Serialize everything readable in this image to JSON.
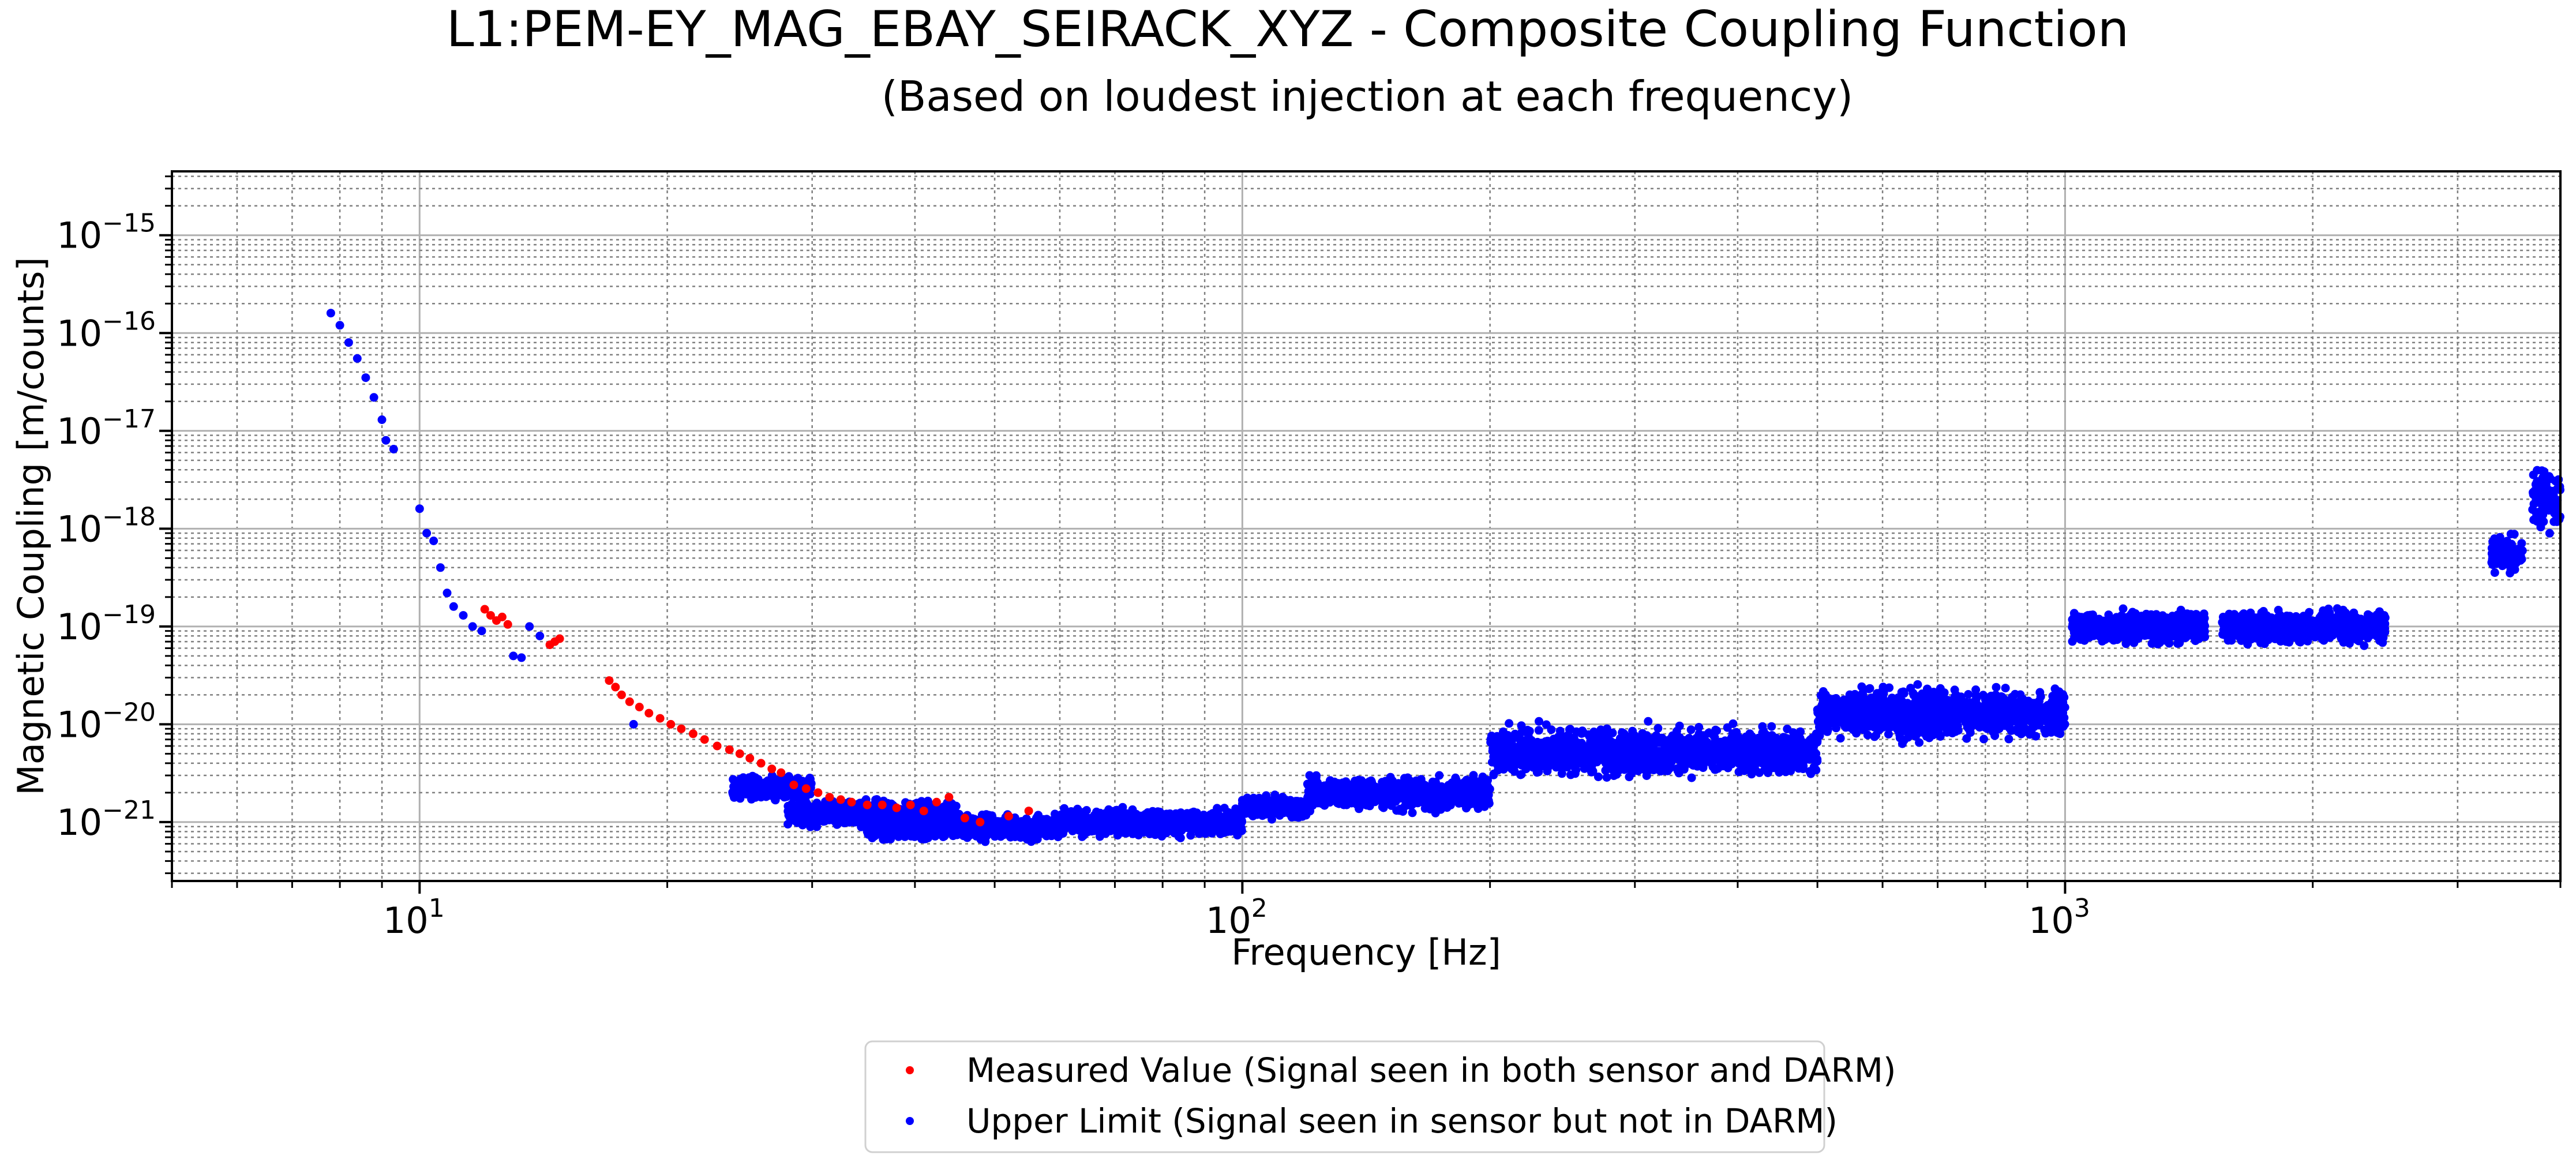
{
  "colors": {
    "measured": "#ff0000",
    "upper": "#0000ff",
    "grid_major": "#b0b0b0",
    "grid_minor": "#808080",
    "axis": "#000000"
  },
  "chart_data": {
    "type": "scatter",
    "title": "L1:PEM-EY_MAG_EBAY_SEIRACK_XYZ - Composite Coupling Function",
    "subtitle": "(Based on loudest injection at each frequency)",
    "xlabel": "Frequency [Hz]",
    "ylabel": "Magnetic Coupling [m/counts]",
    "xscale": "log",
    "yscale": "log",
    "xlim": [
      5,
      4000
    ],
    "ylim": [
      2.5e-22,
      4.5e-15
    ],
    "grid": true,
    "legend_position": "bottom-center (below axes)",
    "x_tick_labels": [
      {
        "value": 10,
        "base": "10",
        "exp": "1"
      },
      {
        "value": 100,
        "base": "10",
        "exp": "2"
      },
      {
        "value": 1000,
        "base": "10",
        "exp": "3"
      }
    ],
    "y_tick_labels": [
      {
        "value": 1e-21,
        "base": "10",
        "exp": "−21"
      },
      {
        "value": 1e-20,
        "base": "10",
        "exp": "−20"
      },
      {
        "value": 1e-19,
        "base": "10",
        "exp": "−19"
      },
      {
        "value": 1e-18,
        "base": "10",
        "exp": "−18"
      },
      {
        "value": 1e-17,
        "base": "10",
        "exp": "−17"
      },
      {
        "value": 1e-16,
        "base": "10",
        "exp": "−16"
      },
      {
        "value": 1e-15,
        "base": "10",
        "exp": "−15"
      }
    ],
    "series": [
      {
        "name": "Measured Value (Signal seen in both sensor and DARM)",
        "color": "#ff0000",
        "points": [
          [
            12.0,
            1.5e-19
          ],
          [
            12.2,
            1.3e-19
          ],
          [
            12.4,
            1.15e-19
          ],
          [
            12.6,
            1.25e-19
          ],
          [
            12.8,
            1.05e-19
          ],
          [
            14.4,
            6.5e-20
          ],
          [
            14.6,
            7e-20
          ],
          [
            14.8,
            7.5e-20
          ],
          [
            17.0,
            2.8e-20
          ],
          [
            17.3,
            2.4e-20
          ],
          [
            17.6,
            2e-20
          ],
          [
            18.0,
            1.7e-20
          ],
          [
            18.5,
            1.5e-20
          ],
          [
            19.0,
            1.3e-20
          ],
          [
            19.6,
            1.15e-20
          ],
          [
            20.2,
            1e-20
          ],
          [
            20.8,
            9e-21
          ],
          [
            21.5,
            8e-21
          ],
          [
            22.2,
            7e-21
          ],
          [
            23.0,
            6e-21
          ],
          [
            23.8,
            5.5e-21
          ],
          [
            24.5,
            5e-21
          ],
          [
            25.2,
            4.5e-21
          ],
          [
            26.0,
            4e-21
          ],
          [
            26.8,
            3.5e-21
          ],
          [
            27.5,
            3.2e-21
          ],
          [
            28.5,
            2.4e-21
          ],
          [
            29.5,
            2.2e-21
          ],
          [
            30.5,
            2e-21
          ],
          [
            31.5,
            1.8e-21
          ],
          [
            32.5,
            1.7e-21
          ],
          [
            33.5,
            1.6e-21
          ],
          [
            35.0,
            1.5e-21
          ],
          [
            36.5,
            1.5e-21
          ],
          [
            38.0,
            1.4e-21
          ],
          [
            39.5,
            1.5e-21
          ],
          [
            41.0,
            1.3e-21
          ],
          [
            42.5,
            1.6e-21
          ],
          [
            44.0,
            1.8e-21
          ],
          [
            46.0,
            1.1e-21
          ],
          [
            48.0,
            1e-21
          ],
          [
            52.0,
            1.15e-21
          ],
          [
            55.0,
            1.3e-21
          ]
        ]
      },
      {
        "name": "Upper Limit (Signal seen in sensor but not in DARM)",
        "color": "#0000ff",
        "points": [
          [
            7.8,
            1.6e-16
          ],
          [
            8.0,
            1.2e-16
          ],
          [
            8.2,
            8e-17
          ],
          [
            8.4,
            5.5e-17
          ],
          [
            8.6,
            3.5e-17
          ],
          [
            8.8,
            2.2e-17
          ],
          [
            9.0,
            1.3e-17
          ],
          [
            9.1,
            8e-18
          ],
          [
            9.3,
            6.5e-18
          ],
          [
            10.0,
            1.6e-18
          ],
          [
            10.2,
            9e-19
          ],
          [
            10.4,
            7.5e-19
          ],
          [
            10.6,
            4e-19
          ],
          [
            10.8,
            2.2e-19
          ],
          [
            11.0,
            1.6e-19
          ],
          [
            11.3,
            1.3e-19
          ],
          [
            11.6,
            1e-19
          ],
          [
            11.9,
            9e-20
          ],
          [
            13.0,
            5e-20
          ],
          [
            13.3,
            4.8e-20
          ],
          [
            13.6,
            1e-19
          ],
          [
            14.0,
            8e-20
          ],
          [
            18.2,
            1e-20
          ],
          [
            26.0,
            1.8e-21
          ]
        ],
        "bands": [
          {
            "x": [
              24,
              30
            ],
            "y": [
              1.6e-21,
              3.2e-21
            ]
          },
          {
            "x": [
              28,
              45
            ],
            "y": [
              8e-22,
              1.8e-21
            ]
          },
          {
            "x": [
              35,
              60
            ],
            "y": [
              6e-22,
              1.3e-21
            ]
          },
          {
            "x": [
              60,
              100
            ],
            "y": [
              6.5e-22,
              1.5e-21
            ]
          },
          {
            "x": [
              100,
              120
            ],
            "y": [
              1e-21,
              2e-21
            ]
          },
          {
            "x": [
              120,
              200
            ],
            "y": [
              1.2e-21,
              3.2e-21
            ]
          },
          {
            "x": [
              200,
              500
            ],
            "y": [
              2.5e-21,
              1.1e-20
            ]
          },
          {
            "x": [
              500,
              1000
            ],
            "y": [
              6e-21,
              2.8e-20
            ]
          },
          {
            "x": [
              1020,
              1480
            ],
            "y": [
              6e-20,
              1.6e-19
            ]
          },
          {
            "x": [
              1550,
              2050
            ],
            "y": [
              6e-20,
              1.6e-19
            ]
          },
          {
            "x": [
              2050,
              2450
            ],
            "y": [
              6e-20,
              1.7e-19
            ]
          },
          {
            "x": [
              3300,
              3600
            ],
            "y": [
              3e-19,
              1e-18
            ]
          },
          {
            "x": [
              3700,
              4000
            ],
            "y": [
              8e-19,
              5e-18
            ]
          }
        ]
      }
    ]
  }
}
